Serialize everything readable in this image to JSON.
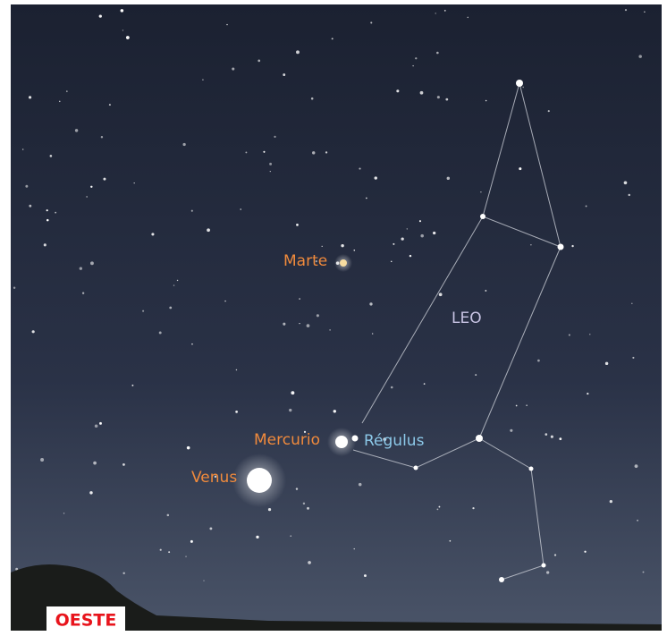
{
  "labels": {
    "marte": "Marte",
    "mercurio": "Mercurio",
    "regulus": "Régulus",
    "venus": "Venus",
    "leo": "LEO"
  },
  "direction": "OESTE"
}
